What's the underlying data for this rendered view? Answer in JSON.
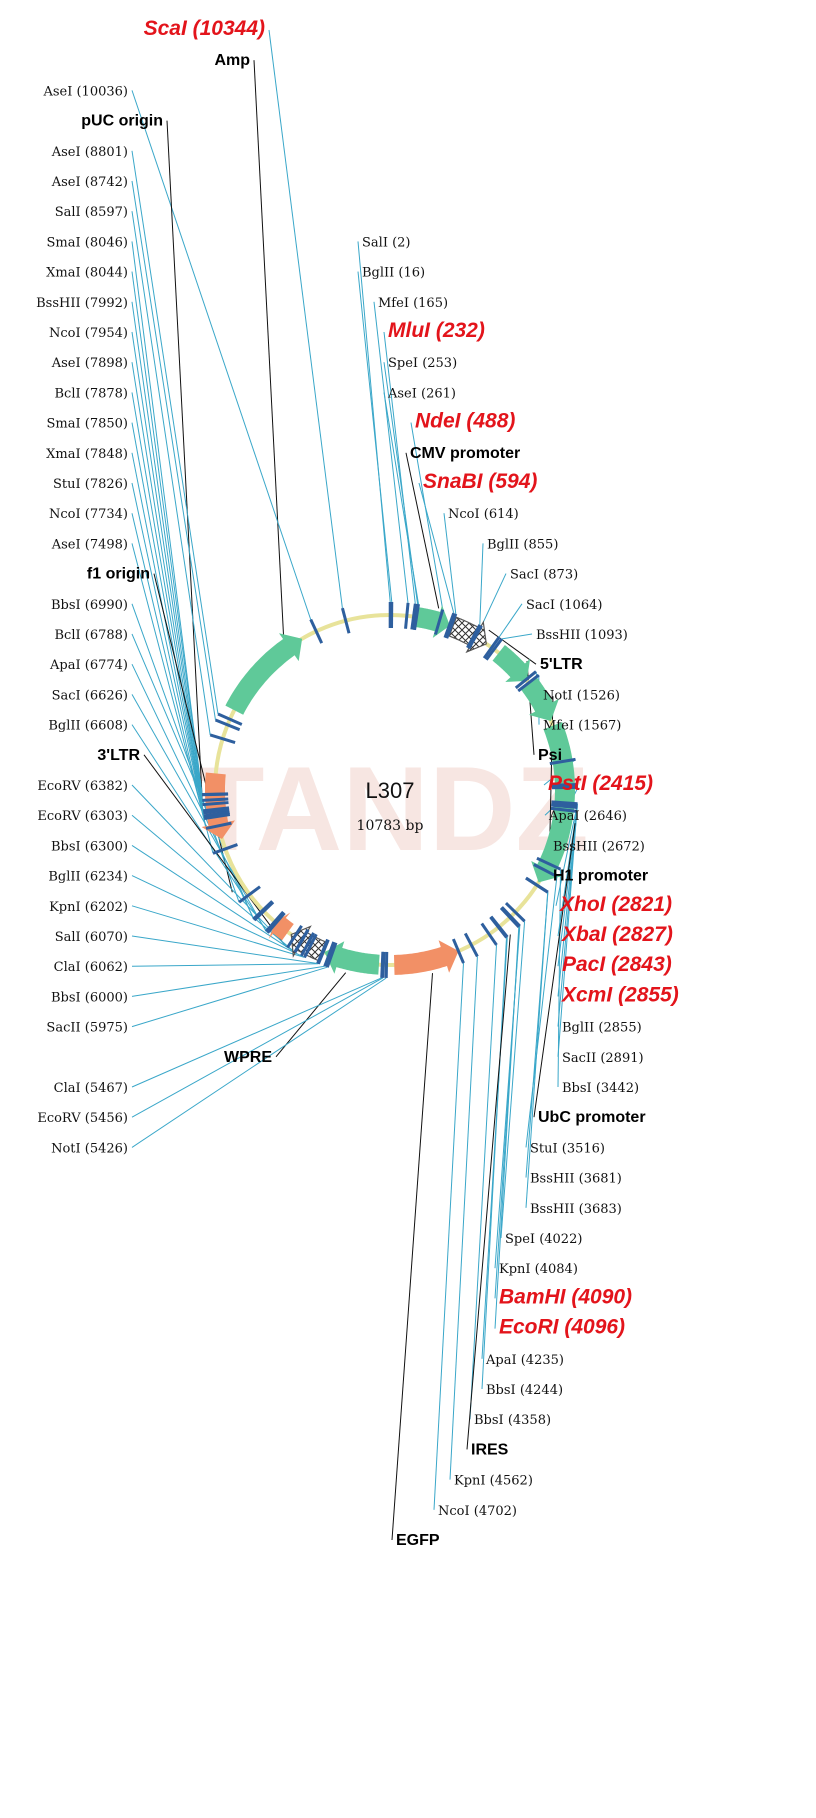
{
  "plasmid": {
    "name": "L307",
    "size_text": "10783 bp",
    "length": 10783,
    "watermark": "TANDZ"
  },
  "colors": {
    "backbone": "#e8e39a",
    "site_line": "#3aa7c9",
    "feature_line": "#111111",
    "tick": "#2e5f9e",
    "highlight_text": "#e3141b",
    "feature_green": "#5fc999",
    "feature_orange": "#f29066",
    "feature_hatched": "#555555"
  },
  "features": [
    {
      "name": "Amp",
      "start": 8900,
      "end": 9880,
      "kind": "green",
      "dir": 1
    },
    {
      "name": "pUC origin",
      "start": 7600,
      "end": 8250,
      "kind": "orange",
      "dir": -1
    },
    {
      "name": "f1 origin",
      "start": 6700,
      "end": 7200,
      "kind": "none",
      "dir": 1
    },
    {
      "name": "CMV promoter",
      "start": 230,
      "end": 600,
      "kind": "green",
      "dir": 1
    },
    {
      "name": "5'LTR",
      "start": 630,
      "end": 1000,
      "kind": "hatched",
      "dir": 1
    },
    {
      "name": "Psi",
      "start": 1150,
      "end": 1540,
      "kind": "green",
      "dir": 1
    },
    {
      "name": "H1 promoter",
      "start": 1560,
      "end": 2000,
      "kind": "green",
      "dir": 1
    },
    {
      "name": "UbC promoter",
      "start": 2050,
      "end": 3650,
      "kind": "green",
      "dir": 1
    },
    {
      "name": "IRES",
      "start": 4000,
      "end": 4450,
      "kind": "none",
      "dir": 1
    },
    {
      "name": "EGFP",
      "start": 4700,
      "end": 5350,
      "kind": "orange",
      "dir": -1
    },
    {
      "name": "WPRE",
      "start": 5500,
      "end": 6050,
      "kind": "green",
      "dir": 1
    },
    {
      "name": "3'LTR",
      "start": 6070,
      "end": 6420,
      "kind": "hatched",
      "dir": 1
    },
    {
      "name": "",
      "start": 6460,
      "end": 6620,
      "kind": "orange",
      "dir": 1
    }
  ],
  "labels": [
    {
      "text": "ScaI (10344)",
      "pos": 10344,
      "style": "hi",
      "side": "left",
      "row": 0
    },
    {
      "text": "Amp",
      "pos": 9750,
      "style": "feat",
      "side": "left",
      "row": 1
    },
    {
      "text": "AseI (10036)",
      "pos": 10036,
      "style": "enz",
      "side": "left",
      "row": 2
    },
    {
      "text": "pUC origin",
      "pos": 8000,
      "style": "feat",
      "side": "left",
      "row": 3
    },
    {
      "text": "AseI (8801)",
      "pos": 8801,
      "style": "enz",
      "side": "left",
      "row": 4
    },
    {
      "text": "AseI (8742)",
      "pos": 8742,
      "style": "enz",
      "side": "left",
      "row": 5
    },
    {
      "text": "SalI (8597)",
      "pos": 8597,
      "style": "enz",
      "side": "left",
      "row": 6
    },
    {
      "text": "SmaI (8046)",
      "pos": 8046,
      "style": "enz",
      "side": "left",
      "row": 7
    },
    {
      "text": "XmaI (8044)",
      "pos": 8044,
      "style": "enz",
      "side": "left",
      "row": 8
    },
    {
      "text": "BssHII (7992)",
      "pos": 7992,
      "style": "enz",
      "side": "left",
      "row": 9
    },
    {
      "text": "NcoI (7954)",
      "pos": 7954,
      "style": "enz",
      "side": "left",
      "row": 10
    },
    {
      "text": "AseI (7898)",
      "pos": 7898,
      "style": "enz",
      "side": "left",
      "row": 11
    },
    {
      "text": "BclI (7878)",
      "pos": 7878,
      "style": "enz",
      "side": "left",
      "row": 12
    },
    {
      "text": "SmaI (7850)",
      "pos": 7850,
      "style": "enz",
      "side": "left",
      "row": 13
    },
    {
      "text": "XmaI (7848)",
      "pos": 7848,
      "style": "enz",
      "side": "left",
      "row": 14
    },
    {
      "text": "StuI (7826)",
      "pos": 7826,
      "style": "enz",
      "side": "left",
      "row": 15
    },
    {
      "text": "NcoI (7734)",
      "pos": 7734,
      "style": "enz",
      "side": "left",
      "row": 16
    },
    {
      "text": "AseI (7498)",
      "pos": 7498,
      "style": "enz",
      "side": "left",
      "row": 17
    },
    {
      "text": "f1 origin",
      "pos": 7100,
      "style": "feat",
      "side": "left",
      "row": 18
    },
    {
      "text": "BbsI (6990)",
      "pos": 6990,
      "style": "enz",
      "side": "left",
      "row": 19
    },
    {
      "text": "BclI (6788)",
      "pos": 6788,
      "style": "enz",
      "side": "left",
      "row": 20
    },
    {
      "text": "ApaI (6774)",
      "pos": 6774,
      "style": "enz",
      "side": "left",
      "row": 21
    },
    {
      "text": "SacI (6626)",
      "pos": 6626,
      "style": "enz",
      "side": "left",
      "row": 22
    },
    {
      "text": "BglII (6608)",
      "pos": 6608,
      "style": "enz",
      "side": "left",
      "row": 23
    },
    {
      "text": "3'LTR",
      "pos": 6400,
      "style": "feat",
      "side": "left",
      "row": 24
    },
    {
      "text": "EcoRV (6382)",
      "pos": 6382,
      "style": "enz",
      "side": "left",
      "row": 25
    },
    {
      "text": "EcoRV (6303)",
      "pos": 6303,
      "style": "enz",
      "side": "left",
      "row": 26
    },
    {
      "text": "BbsI (6300)",
      "pos": 6300,
      "style": "enz",
      "side": "left",
      "row": 27
    },
    {
      "text": "BglII (6234)",
      "pos": 6234,
      "style": "enz",
      "side": "left",
      "row": 28
    },
    {
      "text": "KpnI (6202)",
      "pos": 6202,
      "style": "enz",
      "side": "left",
      "row": 29
    },
    {
      "text": "SalI (6070)",
      "pos": 6070,
      "style": "enz",
      "side": "left",
      "row": 30
    },
    {
      "text": "ClaI (6062)",
      "pos": 6062,
      "style": "enz",
      "side": "left",
      "row": 31
    },
    {
      "text": "BbsI (6000)",
      "pos": 6000,
      "style": "enz",
      "side": "left",
      "row": 32
    },
    {
      "text": "SacII (5975)",
      "pos": 5975,
      "style": "enz",
      "side": "left",
      "row": 33
    },
    {
      "text": "WPRE",
      "pos": 5800,
      "style": "feat",
      "side": "left",
      "row": 34
    },
    {
      "text": "ClaI (5467)",
      "pos": 5467,
      "style": "enz",
      "side": "left",
      "row": 35
    },
    {
      "text": "EcoRV (5456)",
      "pos": 5456,
      "style": "enz",
      "side": "left",
      "row": 36
    },
    {
      "text": "NotI (5426)",
      "pos": 5426,
      "style": "enz",
      "side": "left",
      "row": 37
    },
    {
      "text": "SalI (2)",
      "pos": 2,
      "style": "enz",
      "side": "right",
      "row": 7
    },
    {
      "text": "BglII (16)",
      "pos": 16,
      "style": "enz",
      "side": "right",
      "row": 8
    },
    {
      "text": "MfeI (165)",
      "pos": 165,
      "style": "enz",
      "side": "right",
      "row": 9
    },
    {
      "text": "MluI (232)",
      "pos": 232,
      "style": "hi",
      "side": "right",
      "row": 10
    },
    {
      "text": "SpeI (253)",
      "pos": 253,
      "style": "enz",
      "side": "right",
      "row": 11
    },
    {
      "text": "AseI (261)",
      "pos": 261,
      "style": "enz",
      "side": "right",
      "row": 12
    },
    {
      "text": "NdeI (488)",
      "pos": 488,
      "style": "hi",
      "side": "right",
      "row": 13
    },
    {
      "text": "CMV promoter",
      "pos": 450,
      "style": "feat",
      "side": "right",
      "row": 14
    },
    {
      "text": "SnaBI (594)",
      "pos": 594,
      "style": "hi",
      "side": "right",
      "row": 15
    },
    {
      "text": "NcoI (614)",
      "pos": 614,
      "style": "enz",
      "side": "right",
      "row": 16
    },
    {
      "text": "BglII (855)",
      "pos": 855,
      "style": "enz",
      "side": "right",
      "row": 17
    },
    {
      "text": "SacI (873)",
      "pos": 873,
      "style": "enz",
      "side": "right",
      "row": 18
    },
    {
      "text": "SacI (1064)",
      "pos": 1064,
      "style": "enz",
      "side": "right",
      "row": 19
    },
    {
      "text": "BssHII (1093)",
      "pos": 1093,
      "style": "enz",
      "side": "right",
      "row": 20
    },
    {
      "text": "5'LTR",
      "pos": 950,
      "style": "feat",
      "side": "right",
      "row": 21
    },
    {
      "text": "NotI (1526)",
      "pos": 1526,
      "style": "enz",
      "side": "right",
      "row": 22
    },
    {
      "text": "MfeI (1567)",
      "pos": 1567,
      "style": "enz",
      "side": "right",
      "row": 23
    },
    {
      "text": "Psi",
      "pos": 1400,
      "style": "feat",
      "side": "right",
      "row": 24
    },
    {
      "text": "PstI (2415)",
      "pos": 2415,
      "style": "hi",
      "side": "right",
      "row": 25
    },
    {
      "text": "ApaI (2646)",
      "pos": 2646,
      "style": "enz",
      "side": "right",
      "row": 26
    },
    {
      "text": "BssHII (2672)",
      "pos": 2672,
      "style": "enz",
      "side": "right",
      "row": 27
    },
    {
      "text": "H1 promoter",
      "pos": 1800,
      "style": "feat",
      "side": "right",
      "row": 28
    },
    {
      "text": "XhoI (2821)",
      "pos": 2821,
      "style": "hi",
      "side": "right",
      "row": 29
    },
    {
      "text": "XbaI (2827)",
      "pos": 2827,
      "style": "hi",
      "side": "right",
      "row": 30
    },
    {
      "text": "PacI (2843)",
      "pos": 2843,
      "style": "hi",
      "side": "right",
      "row": 31
    },
    {
      "text": "XcmI (2855)",
      "pos": 2855,
      "style": "hi",
      "side": "right",
      "row": 32
    },
    {
      "text": "BglII (2855)",
      "pos": 2855,
      "style": "enz",
      "side": "right",
      "row": 33
    },
    {
      "text": "SacII (2891)",
      "pos": 2891,
      "style": "enz",
      "side": "right",
      "row": 34
    },
    {
      "text": "BbsI (3442)",
      "pos": 3442,
      "style": "enz",
      "side": "right",
      "row": 35
    },
    {
      "text": "UbC promoter",
      "pos": 3000,
      "style": "feat",
      "side": "right",
      "row": 36
    },
    {
      "text": "StuI (3516)",
      "pos": 3516,
      "style": "enz",
      "side": "right",
      "row": 37
    },
    {
      "text": "BssHII (3681)",
      "pos": 3681,
      "style": "enz",
      "side": "right",
      "row": 38
    },
    {
      "text": "BssHII (3683)",
      "pos": 3683,
      "style": "enz",
      "side": "right",
      "row": 39
    },
    {
      "text": "SpeI (4022)",
      "pos": 4022,
      "style": "enz",
      "side": "right",
      "row": 40
    },
    {
      "text": "KpnI (4084)",
      "pos": 4084,
      "style": "enz",
      "side": "right",
      "row": 41
    },
    {
      "text": "BamHI (4090)",
      "pos": 4090,
      "style": "hi",
      "side": "right",
      "row": 42
    },
    {
      "text": "EcoRI (4096)",
      "pos": 4096,
      "style": "hi",
      "side": "right",
      "row": 43
    },
    {
      "text": "ApaI (4235)",
      "pos": 4235,
      "style": "enz",
      "side": "right",
      "row": 44
    },
    {
      "text": "BbsI (4244)",
      "pos": 4244,
      "style": "enz",
      "side": "right",
      "row": 45
    },
    {
      "text": "BbsI (4358)",
      "pos": 4358,
      "style": "enz",
      "side": "right",
      "row": 46
    },
    {
      "text": "IRES",
      "pos": 4200,
      "style": "feat",
      "side": "right",
      "row": 47
    },
    {
      "text": "KpnI (4562)",
      "pos": 4562,
      "style": "enz",
      "side": "right",
      "row": 48
    },
    {
      "text": "NcoI (4702)",
      "pos": 4702,
      "style": "enz",
      "side": "right",
      "row": 49
    },
    {
      "text": "EGFP",
      "pos": 5000,
      "style": "feat",
      "side": "right",
      "row": 50
    }
  ]
}
